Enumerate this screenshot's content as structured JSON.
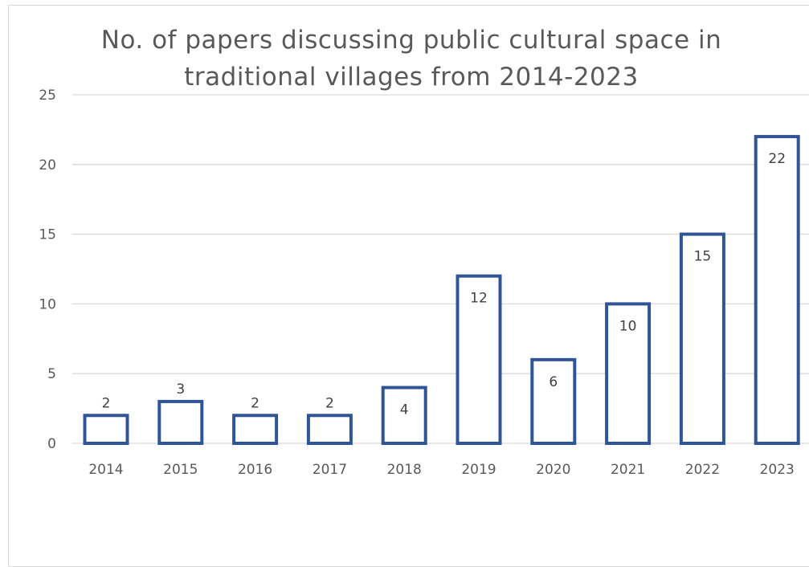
{
  "chart_data": {
    "type": "bar",
    "title_lines": [
      "No. of papers discussing public cultural space in",
      "traditional villages from 2014-2023"
    ],
    "categories": [
      "2014",
      "2015",
      "2016",
      "2017",
      "2018",
      "2019",
      "2020",
      "2021",
      "2022",
      "2023"
    ],
    "values": [
      2,
      3,
      2,
      2,
      4,
      12,
      6,
      10,
      15,
      22
    ],
    "ylim": [
      0,
      25
    ],
    "yticks": [
      0,
      5,
      10,
      15,
      20,
      25
    ],
    "grid": true,
    "legend": "none",
    "bar_style": "outline",
    "bar_color": "#2F5597",
    "grid_color": "#d9d9d9"
  }
}
